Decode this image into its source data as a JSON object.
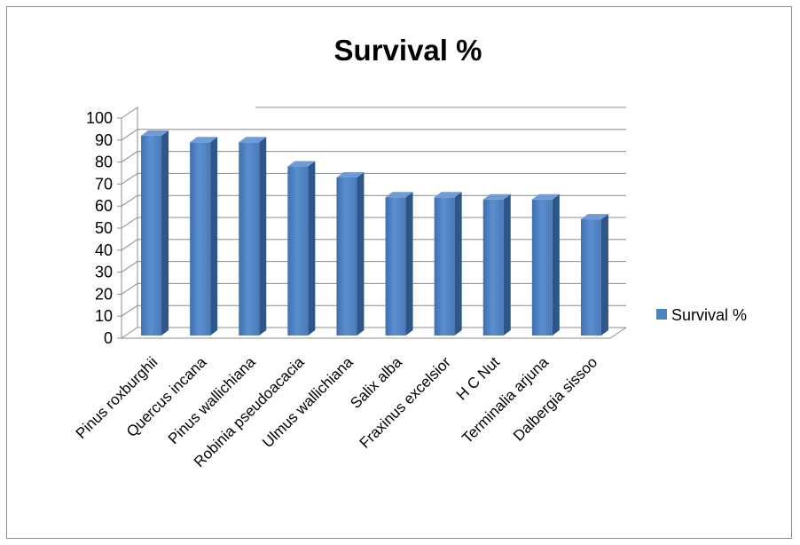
{
  "chart_data": {
    "type": "bar",
    "title": "Survival %",
    "categories": [
      "Pinus roxburghii",
      "Quercus incana",
      "Pinus wallichiana",
      "Robinia pseudoacacia",
      "Ulmus wallichiana",
      "Salix alba",
      "Fraxinus excelsior",
      "H C Nut",
      "Terminalia arjuna",
      "Dalbergia  sissoo"
    ],
    "series": [
      {
        "name": "Survival %",
        "values": [
          92,
          89,
          89,
          78,
          73,
          64,
          64,
          63,
          63,
          54
        ]
      }
    ],
    "ylim": [
      0,
      100
    ],
    "yticks": [
      "0",
      "10",
      "20",
      "30",
      "40",
      "50",
      "60",
      "70",
      "80",
      "90",
      "100"
    ],
    "xlabel": "",
    "ylabel": "",
    "grid": true,
    "legend_position": "right",
    "bar_color": "#4f81bd",
    "style": "3d-column"
  }
}
